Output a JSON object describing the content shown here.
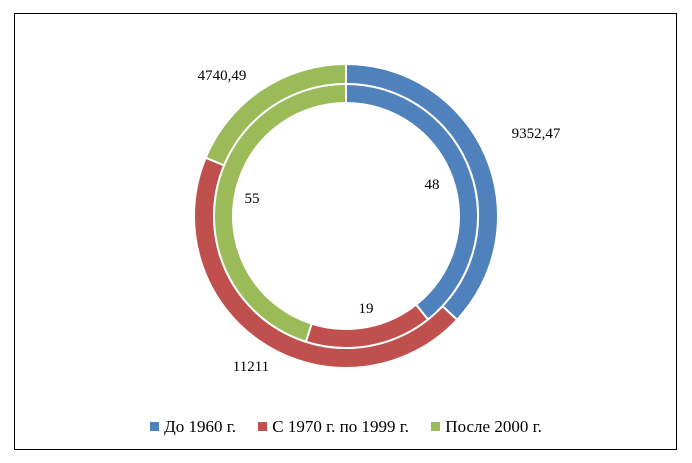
{
  "chart_data": {
    "type": "doughnut",
    "rings": [
      {
        "ring": "outer",
        "categories": [
          "До 1960 г.",
          "С 1970 г. по 1999 г.",
          "После 2000 г."
        ],
        "values": [
          9352.47,
          11211,
          4740.49
        ],
        "value_labels": [
          "9352,47",
          "11211",
          "4740,49"
        ]
      },
      {
        "ring": "inner",
        "categories": [
          "До 1960 г.",
          "С 1970 г. по 1999 г.",
          "После 2000 г."
        ],
        "values": [
          48,
          19,
          55
        ],
        "value_labels": [
          "48",
          "19",
          "55"
        ]
      }
    ],
    "legend": {
      "position": "bottom",
      "entries": [
        {
          "label": "До 1960 г.",
          "color": "#4F81BD"
        },
        {
          "label": "С 1970 г. по 1999 г.",
          "color": "#C0504D"
        },
        {
          "label": "После 2000 г.",
          "color": "#9BBB59"
        }
      ]
    }
  }
}
